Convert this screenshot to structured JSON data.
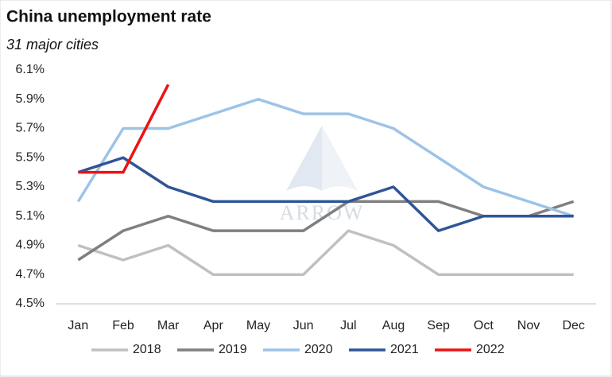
{
  "chart_data": {
    "type": "line",
    "title": "China unemployment rate",
    "subtitle": "31 major cities",
    "watermark": "ARROW",
    "categories": [
      "Jan",
      "Feb",
      "Mar",
      "Apr",
      "May",
      "Jun",
      "Jul",
      "Aug",
      "Sep",
      "Oct",
      "Nov",
      "Dec"
    ],
    "series": [
      {
        "name": "2018",
        "color": "#c0c0c0",
        "values": [
          4.9,
          4.8,
          4.9,
          4.7,
          4.7,
          4.7,
          5.0,
          4.9,
          4.7,
          4.7,
          4.7,
          4.7
        ]
      },
      {
        "name": "2019",
        "color": "#7f7f7f",
        "values": [
          4.8,
          5.0,
          5.1,
          5.0,
          5.0,
          5.0,
          5.2,
          5.2,
          5.2,
          5.1,
          5.1,
          5.2
        ]
      },
      {
        "name": "2020",
        "color": "#9dc3e6",
        "values": [
          5.2,
          5.7,
          5.7,
          5.8,
          5.9,
          5.8,
          5.8,
          5.7,
          5.5,
          5.3,
          5.2,
          5.1
        ]
      },
      {
        "name": "2021",
        "color": "#2f5597",
        "values": [
          5.4,
          5.5,
          5.3,
          5.2,
          5.2,
          5.2,
          5.2,
          5.3,
          5.0,
          5.1,
          5.1,
          5.1
        ]
      },
      {
        "name": "2022",
        "color": "#ee1111",
        "values": [
          5.4,
          5.4,
          6.0,
          null,
          null,
          null,
          null,
          null,
          null,
          null,
          null,
          null
        ]
      }
    ],
    "ylim": [
      4.5,
      6.1
    ],
    "yticks": [
      {
        "value": 4.5,
        "label": "4.5%"
      },
      {
        "value": 4.7,
        "label": "4.7%"
      },
      {
        "value": 4.9,
        "label": "4.9%"
      },
      {
        "value": 5.1,
        "label": "5.1%"
      },
      {
        "value": 5.3,
        "label": "5.3%"
      },
      {
        "value": 5.5,
        "label": "5.5%"
      },
      {
        "value": 5.7,
        "label": "5.7%"
      },
      {
        "value": 5.9,
        "label": "5.9%"
      },
      {
        "value": 6.1,
        "label": "6.1%"
      }
    ],
    "grid": false,
    "legend": "bottom"
  }
}
